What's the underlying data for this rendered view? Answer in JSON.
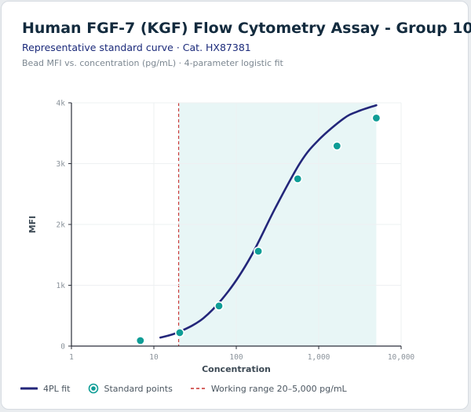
{
  "header": {
    "title": "Human FGF-7 (KGF) Flow Cytometry Assay - Group 10",
    "subtitle": "Representative standard curve · Cat. HX87381",
    "caption": "Bead MFI vs. concentration (pg/mL) · 4-parameter logistic fit"
  },
  "legend": {
    "fit_label": "4PL fit",
    "points_label": "Standard points",
    "range_label": "Working range 20–5,000 pg/mL"
  },
  "colors": {
    "curve": "#23267a",
    "points": "#0f9d96",
    "point_stroke": "#ffffff",
    "range_fill": "#e8f6f6",
    "range_line": "#c8302f",
    "grid": "#eef0f2",
    "axis": "#2b2f3a"
  },
  "chart_data": {
    "type": "scatter",
    "xlabel": "Concentration",
    "ylabel": "MFI",
    "xscale": "log",
    "xlim": [
      1,
      10000
    ],
    "ylim": [
      0,
      4000
    ],
    "x_ticks": [
      1,
      10,
      100,
      1000,
      10000
    ],
    "x_tick_labels": [
      "1",
      "10",
      "100",
      "1,000",
      "10,000"
    ],
    "y_ticks": [
      0,
      1000,
      2000,
      3000,
      4000
    ],
    "y_tick_labels": [
      "0",
      "1k",
      "2k",
      "3k",
      "4k"
    ],
    "grid": true,
    "working_range": [
      20,
      5000
    ],
    "series": [
      {
        "name": "Standard points",
        "x": [
          6.86,
          20.6,
          61.7,
          185,
          556,
          1667,
          5000
        ],
        "y": [
          90,
          220,
          660,
          1560,
          2750,
          3290,
          3750
        ]
      }
    ],
    "fit": {
      "name": "4PL fit",
      "model": "4PL",
      "x_range": [
        12,
        5000
      ],
      "x": [
        12,
        20,
        40,
        80,
        150,
        300,
        600,
        1000,
        2000,
        3000,
        5000
      ],
      "y": [
        140,
        230,
        460,
        900,
        1470,
        2280,
        3020,
        3390,
        3740,
        3860,
        3960
      ]
    },
    "legend_position": "bottom-left"
  }
}
